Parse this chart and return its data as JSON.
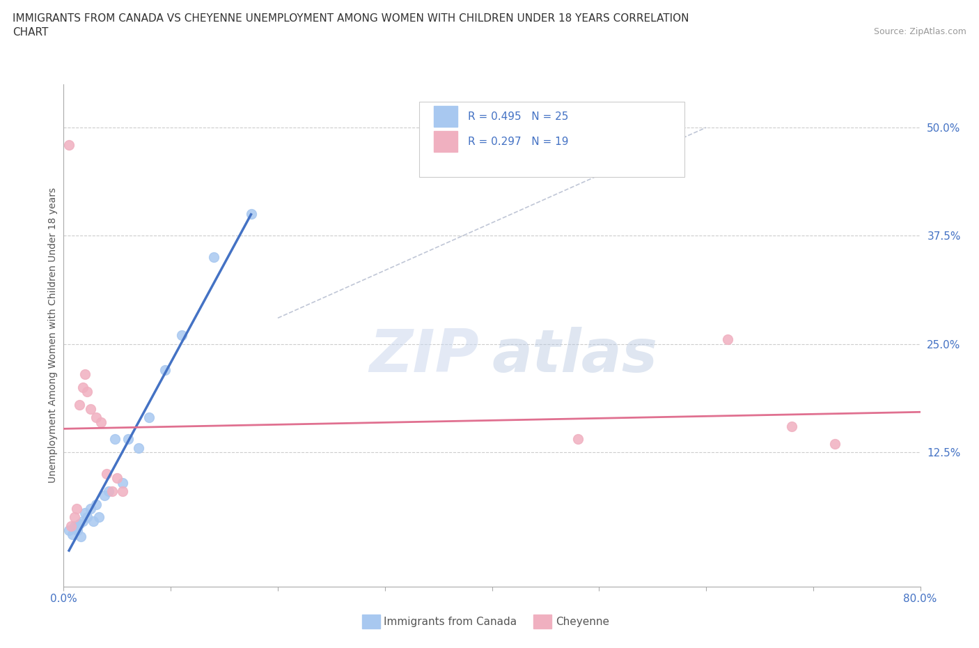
{
  "title_line1": "IMMIGRANTS FROM CANADA VS CHEYENNE UNEMPLOYMENT AMONG WOMEN WITH CHILDREN UNDER 18 YEARS CORRELATION",
  "title_line2": "CHART",
  "source": "Source: ZipAtlas.com",
  "title_fontsize": 11,
  "source_fontsize": 9,
  "ylabel": "Unemployment Among Women with Children Under 18 years",
  "xlim": [
    0,
    0.8
  ],
  "ylim": [
    -0.03,
    0.55
  ],
  "right_yticks": [
    0.0,
    0.125,
    0.25,
    0.375,
    0.5
  ],
  "right_yticklabels": [
    "",
    "12.5%",
    "25.0%",
    "37.5%",
    "50.0%"
  ],
  "legend_r1": "R = 0.495",
  "legend_n1": "N = 25",
  "legend_r2": "R = 0.297",
  "legend_n2": "N = 19",
  "blue_color": "#a8c8f0",
  "pink_color": "#f0b0c0",
  "blue_line_color": "#4472c4",
  "pink_line_color": "#e07090",
  "scatter_size": 100,
  "blue_scatter_x": [
    0.005,
    0.008,
    0.01,
    0.012,
    0.013,
    0.015,
    0.016,
    0.018,
    0.02,
    0.022,
    0.025,
    0.028,
    0.03,
    0.033,
    0.038,
    0.042,
    0.048,
    0.055,
    0.06,
    0.07,
    0.08,
    0.095,
    0.11,
    0.14,
    0.175
  ],
  "blue_scatter_y": [
    0.035,
    0.03,
    0.04,
    0.038,
    0.035,
    0.042,
    0.028,
    0.045,
    0.055,
    0.05,
    0.06,
    0.045,
    0.065,
    0.05,
    0.075,
    0.08,
    0.14,
    0.09,
    0.14,
    0.13,
    0.165,
    0.22,
    0.26,
    0.35,
    0.4
  ],
  "pink_scatter_x": [
    0.005,
    0.007,
    0.01,
    0.012,
    0.015,
    0.018,
    0.02,
    0.022,
    0.025,
    0.03,
    0.035,
    0.04,
    0.045,
    0.05,
    0.055,
    0.48,
    0.62,
    0.68,
    0.72
  ],
  "pink_scatter_y": [
    0.48,
    0.04,
    0.05,
    0.06,
    0.18,
    0.2,
    0.215,
    0.195,
    0.175,
    0.165,
    0.16,
    0.1,
    0.08,
    0.095,
    0.08,
    0.14,
    0.255,
    0.155,
    0.135
  ],
  "watermark_zip": "ZIP",
  "watermark_atlas": "atlas",
  "background_color": "#ffffff",
  "grid_color": "#cccccc",
  "diag_line_x": [
    0.2,
    0.6
  ],
  "diag_line_y": [
    0.28,
    0.5
  ]
}
